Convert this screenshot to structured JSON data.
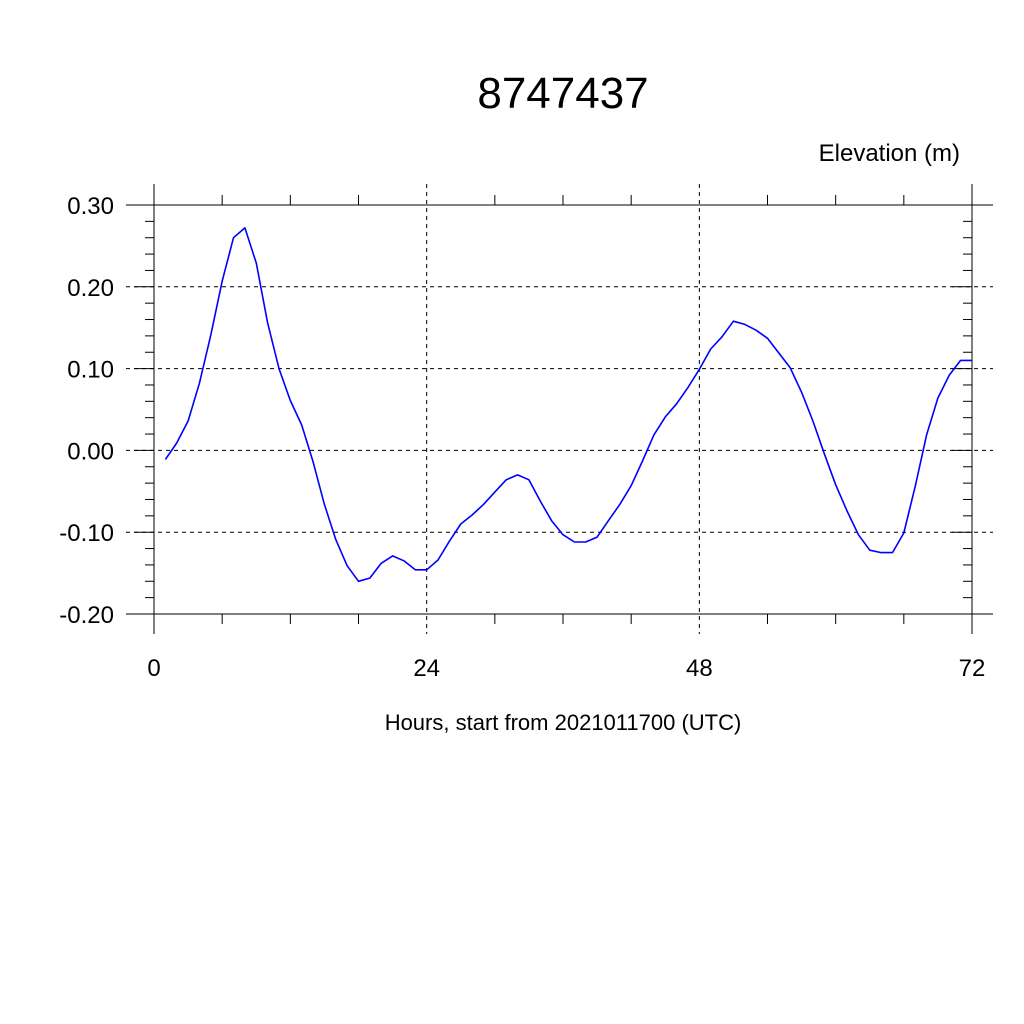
{
  "chart_data": {
    "type": "line",
    "title": "8747437",
    "ylabel": "Elevation (m)",
    "xlabel": "Hours, start from 2021011700 (UTC)",
    "xlim": [
      0,
      72
    ],
    "ylim": [
      -0.2,
      0.3
    ],
    "x_ticks": [
      0,
      24,
      48,
      72
    ],
    "x_tick_labels": [
      "0",
      "24",
      "48",
      "72"
    ],
    "y_ticks": [
      -0.2,
      -0.1,
      0.0,
      0.1,
      0.2,
      0.3
    ],
    "y_tick_labels": [
      "-0.20",
      "-0.10",
      "0.00",
      "0.10",
      "0.20",
      "0.30"
    ],
    "grid": true,
    "line_color": "#0000ff",
    "series": [
      {
        "x": [
          1,
          2,
          3,
          4,
          5,
          6,
          7,
          8,
          9,
          10,
          11,
          12,
          13,
          14,
          15,
          16,
          17,
          18,
          19,
          20,
          21,
          22,
          23,
          24,
          25,
          26,
          27,
          28,
          29,
          30,
          31,
          32,
          33,
          34,
          35,
          36,
          37,
          38,
          39,
          40,
          41,
          42,
          43,
          44,
          45,
          46,
          47,
          48,
          49,
          50,
          51,
          52,
          53,
          54,
          55,
          56,
          57,
          58,
          59,
          60,
          61,
          62,
          63,
          64,
          65,
          66,
          67,
          68,
          69,
          70,
          71,
          72
        ],
        "values": [
          -0.011,
          0.009,
          0.036,
          0.082,
          0.141,
          0.207,
          0.26,
          0.272,
          0.229,
          0.156,
          0.1,
          0.061,
          0.031,
          -0.014,
          -0.066,
          -0.109,
          -0.141,
          -0.16,
          -0.156,
          -0.138,
          -0.129,
          -0.135,
          -0.146,
          -0.146,
          -0.134,
          -0.111,
          -0.09,
          -0.079,
          -0.066,
          -0.051,
          -0.036,
          -0.03,
          -0.036,
          -0.062,
          -0.086,
          -0.103,
          -0.112,
          -0.112,
          -0.106,
          -0.086,
          -0.066,
          -0.043,
          -0.013,
          0.019,
          0.041,
          0.057,
          0.077,
          0.099,
          0.124,
          0.139,
          0.158,
          0.154,
          0.147,
          0.137,
          0.119,
          0.101,
          0.071,
          0.036,
          -0.004,
          -0.042,
          -0.074,
          -0.103,
          -0.122,
          -0.125,
          -0.125,
          -0.101,
          -0.044,
          0.019,
          0.064,
          0.092,
          0.11,
          0.11
        ]
      }
    ]
  }
}
